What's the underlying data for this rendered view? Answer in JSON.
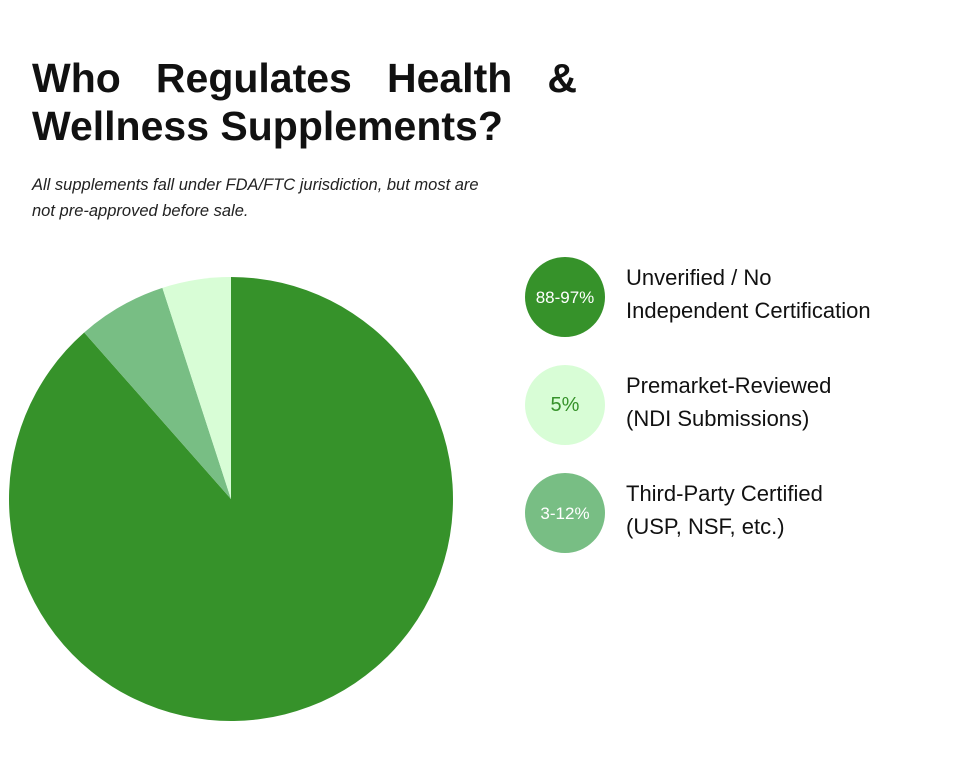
{
  "chart_data": {
    "type": "pie",
    "title": "Who Regulates Health & Wellness Supplements?",
    "subtitle": "All supplements fall under FDA/FTC jurisdiction, but most are not pre-approved before sale.",
    "categories": [
      "Unverified / No\nIndependent Certification",
      "Premarket-Reviewed\n(NDI Submissions)",
      "Third-Party Certified\n(USP, NSF, etc.)"
    ],
    "values": [
      88.5,
      5,
      6.5
    ],
    "value_labels": [
      "88-97%",
      "5%",
      "3-12%"
    ],
    "colors": [
      "#36922a",
      "#d8fdd6",
      "#78be84"
    ]
  }
}
